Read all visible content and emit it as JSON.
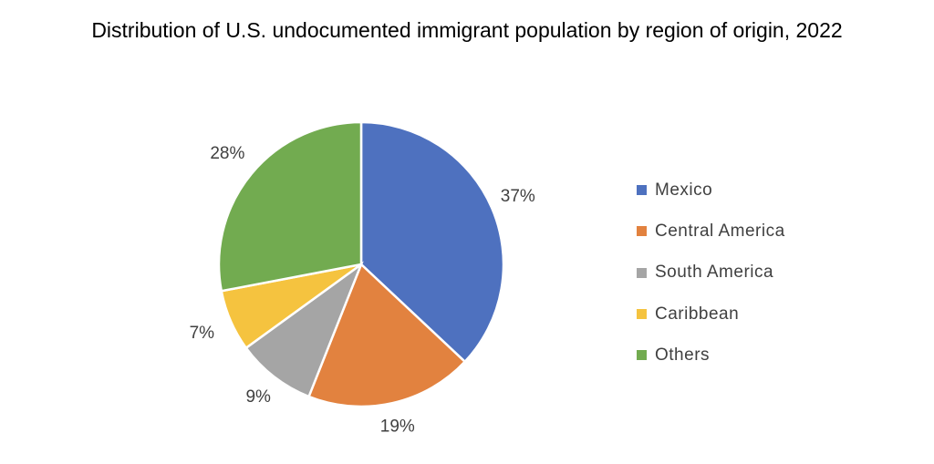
{
  "chart_data": {
    "type": "pie",
    "title": "Distribution of U.S. undocumented immigrant population by region of origin, 2022",
    "categories": [
      "Mexico",
      "Central America",
      "South America",
      "Caribbean",
      "Others"
    ],
    "values": [
      37,
      19,
      9,
      7,
      28
    ],
    "labels": [
      "37%",
      "19%",
      "9%",
      "7%",
      "28%"
    ],
    "colors": [
      "#4E71BF",
      "#E2823F",
      "#A5A5A5",
      "#F5C33F",
      "#72AB50"
    ],
    "legend_position": "right"
  }
}
